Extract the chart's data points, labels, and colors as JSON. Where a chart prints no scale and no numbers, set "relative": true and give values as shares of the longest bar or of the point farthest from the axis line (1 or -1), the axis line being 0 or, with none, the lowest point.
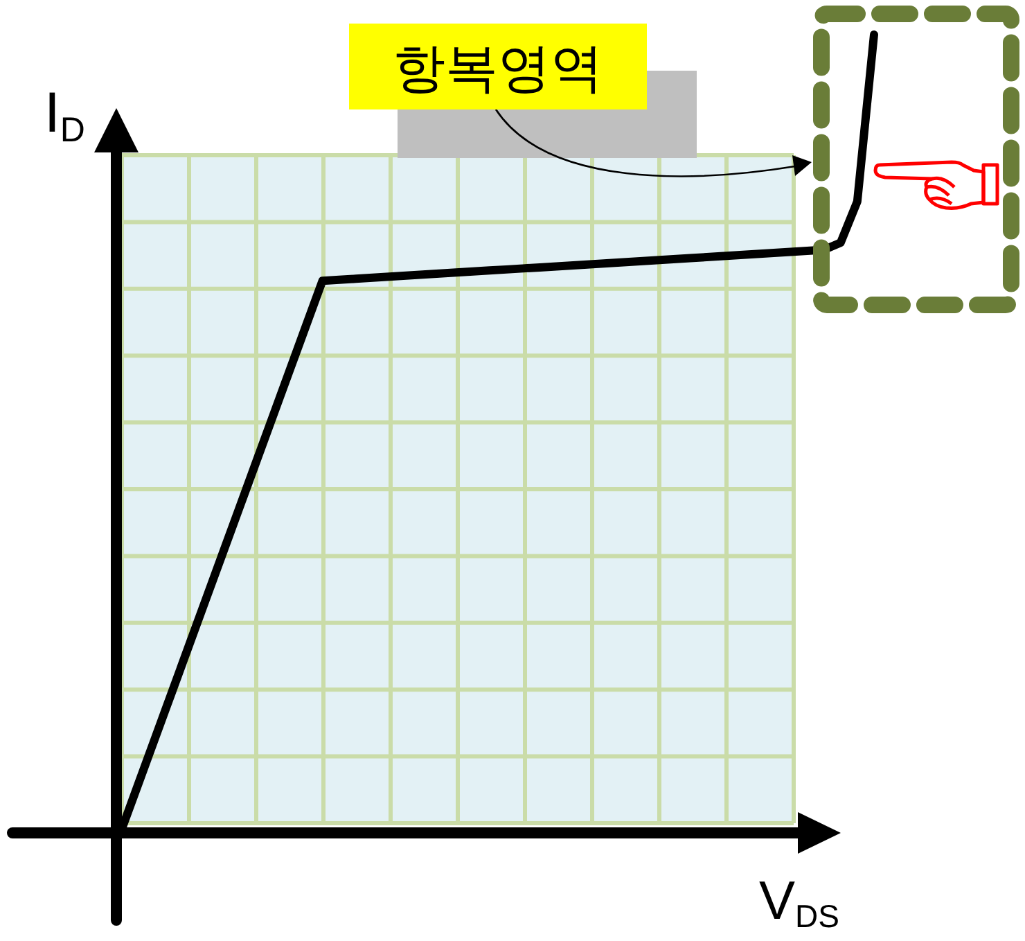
{
  "chart_data": {
    "type": "line",
    "relative": true,
    "xlabel": "V$_{DS}$",
    "ylabel": "I$_{D}$",
    "categories": [
      null,
      null,
      null,
      null,
      null,
      null,
      null,
      null,
      null,
      null,
      null,
      null,
      null,
      null,
      null,
      null,
      null,
      null,
      null,
      null,
      null,
      null,
      null,
      null,
      null,
      null,
      null,
      null,
      null,
      null,
      null,
      null,
      null,
      null,
      null,
      null,
      null,
      null,
      null,
      null,
      null,
      null,
      null,
      null,
      null,
      null
    ],
    "series": [
      {
        "color": "#000000",
        "values": [
          0,
          0.0575,
          0.115,
          0.1725,
          0.23,
          0.2875,
          0.345,
          0.4025,
          0.46,
          0.5175,
          0.575,
          0.6325,
          0.69,
          0.6913,
          0.6926,
          0.6939,
          0.6952,
          0.6965,
          0.6978,
          0.6991,
          0.7004,
          0.7017,
          0.703,
          0.7043,
          0.7056,
          0.7069,
          0.7082,
          0.7095,
          0.7108,
          0.7121,
          0.7134,
          0.7147,
          0.716,
          0.7173,
          0.7186,
          0.7199,
          0.7212,
          0.7225,
          0.7238,
          0.7251,
          0.7264,
          0.7277,
          0.729,
          0.738,
          0.79,
          1
        ]
      }
    ],
    "grid": true,
    "line_style": "solid",
    "marker": "none",
    "annotations": [
      "항복영역"
    ]
  }
}
